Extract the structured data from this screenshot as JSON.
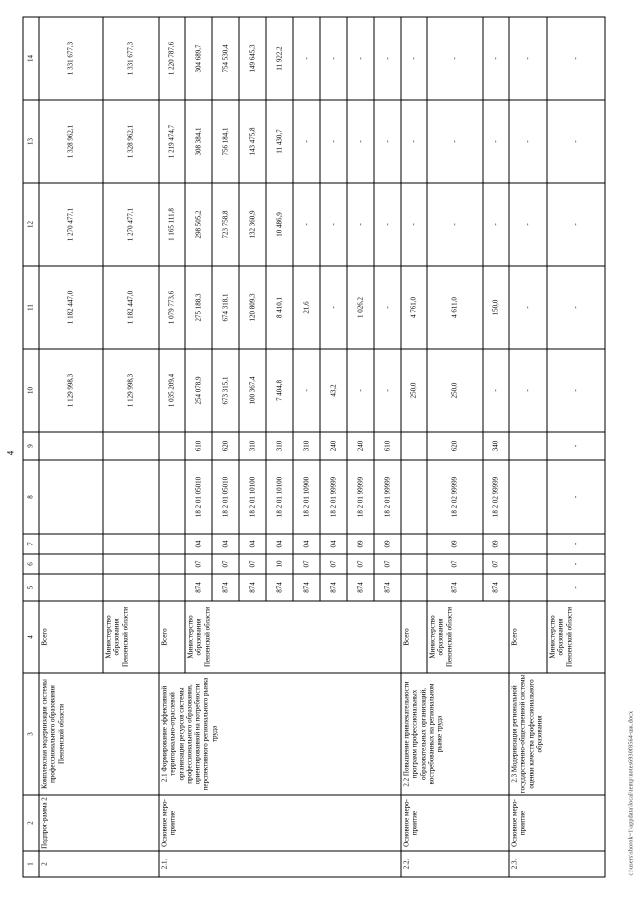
{
  "page": {
    "number": "4",
    "footer_path": "c:\\users\\shorok~1\\appdata\\local\\temp\\notes6930f8564-шк.docx"
  },
  "table": {
    "header": [
      "1",
      "2",
      "3",
      "4",
      "5",
      "6",
      "7",
      "8",
      "9",
      "10",
      "11",
      "12",
      "13",
      "14"
    ],
    "rows": [
      {
        "name": "subprogram-2-total-row",
        "cells": [
          {
            "t": "2",
            "rs": 2,
            "k": "txt"
          },
          {
            "t": "Подпрог-рамма 2",
            "rs": 2,
            "k": "txt"
          },
          {
            "t": "Комплексная модернизация системы профессионального образования Пензенской области",
            "rs": 2,
            "k": "txt"
          },
          {
            "t": "Всего",
            "k": "txt"
          },
          {
            "t": ""
          },
          {
            "t": ""
          },
          {
            "t": ""
          },
          {
            "t": ""
          },
          {
            "t": ""
          },
          {
            "t": "1 129 998,3"
          },
          {
            "t": "1 182 447,0"
          },
          {
            "t": "1 270 477,1"
          },
          {
            "t": "1 328 962,1"
          },
          {
            "t": "1 331 677,3"
          }
        ]
      },
      {
        "name": "subprogram-2-ministry-row",
        "cells": [
          {
            "t": "Министерство образования Пензенской области",
            "k": "txt"
          },
          {
            "t": ""
          },
          {
            "t": ""
          },
          {
            "t": ""
          },
          {
            "t": ""
          },
          {
            "t": ""
          },
          {
            "t": "1 129 998,3"
          },
          {
            "t": "1 182 447,0"
          },
          {
            "t": "1 270 477,1"
          },
          {
            "t": "1 328 962,1"
          },
          {
            "t": "1 331 677,3"
          }
        ]
      },
      {
        "name": "activity-2-1-total-row",
        "cells": [
          {
            "t": "2.1.",
            "rs": 9,
            "k": "txt"
          },
          {
            "t": "Основное меро-приятие",
            "rs": 9,
            "k": "txt"
          },
          {
            "t": "2.1 Формирование эффективной территориально-отраслевой организации ресурсов системы профессионального образования, ориентированной на потребности перспективного регионального рынка труда",
            "rs": 9,
            "k": "txt"
          },
          {
            "t": "Всего",
            "k": "txt"
          },
          {
            "t": ""
          },
          {
            "t": ""
          },
          {
            "t": ""
          },
          {
            "t": ""
          },
          {
            "t": ""
          },
          {
            "t": "1 035 209,4"
          },
          {
            "t": "1 079 773,6"
          },
          {
            "t": "1 165 111,8"
          },
          {
            "t": "1 219 474,7"
          },
          {
            "t": "1 220 787,6"
          }
        ]
      },
      {
        "name": "budget-line-row",
        "cells": [
          {
            "t": "Министерство образования Пензенской области",
            "rs": 8,
            "k": "txt"
          },
          {
            "t": "874"
          },
          {
            "t": "07"
          },
          {
            "t": "04"
          },
          {
            "t": "18 2 01 05010"
          },
          {
            "t": "610"
          },
          {
            "t": "254 078,9"
          },
          {
            "t": "275 188,3"
          },
          {
            "t": "298 505,2"
          },
          {
            "t": "308 384,1"
          },
          {
            "t": "304 689,7"
          }
        ]
      },
      {
        "name": "budget-line-row",
        "cells": [
          {
            "t": "874"
          },
          {
            "t": "07"
          },
          {
            "t": "04"
          },
          {
            "t": "18 2 01 05010"
          },
          {
            "t": "620"
          },
          {
            "t": "673 315,1"
          },
          {
            "t": "674 318,1"
          },
          {
            "t": "723 758,8"
          },
          {
            "t": "756 184,1"
          },
          {
            "t": "754 530,4"
          }
        ]
      },
      {
        "name": "budget-line-row",
        "cells": [
          {
            "t": "874"
          },
          {
            "t": "07"
          },
          {
            "t": "04"
          },
          {
            "t": "18 2 01 10100"
          },
          {
            "t": "310"
          },
          {
            "t": "100 367,4"
          },
          {
            "t": "120 809,3"
          },
          {
            "t": "132 360,9"
          },
          {
            "t": "143 475,8"
          },
          {
            "t": "149 645,3"
          }
        ]
      },
      {
        "name": "budget-line-row",
        "cells": [
          {
            "t": "874"
          },
          {
            "t": "10"
          },
          {
            "t": "04"
          },
          {
            "t": "18 2 01 10100"
          },
          {
            "t": "310"
          },
          {
            "t": "7 404,8"
          },
          {
            "t": "8 410,1"
          },
          {
            "t": "10 486,9"
          },
          {
            "t": "11 430,7"
          },
          {
            "t": "11 922,2"
          }
        ]
      },
      {
        "name": "budget-line-row",
        "cells": [
          {
            "t": "874"
          },
          {
            "t": "07"
          },
          {
            "t": "04"
          },
          {
            "t": "18 2 01 10900"
          },
          {
            "t": "310"
          },
          {
            "t": "-"
          },
          {
            "t": "21,6"
          },
          {
            "t": "-"
          },
          {
            "t": "-"
          },
          {
            "t": "-"
          }
        ]
      },
      {
        "name": "budget-line-row",
        "cells": [
          {
            "t": "874"
          },
          {
            "t": "07"
          },
          {
            "t": "04"
          },
          {
            "t": "18 2 01 99999"
          },
          {
            "t": "240"
          },
          {
            "t": "43,2"
          },
          {
            "t": "-"
          },
          {
            "t": "-"
          },
          {
            "t": "-"
          },
          {
            "t": "-"
          }
        ]
      },
      {
        "name": "budget-line-row",
        "cells": [
          {
            "t": "874"
          },
          {
            "t": "07"
          },
          {
            "t": "09"
          },
          {
            "t": "18 2 01 99999"
          },
          {
            "t": "240"
          },
          {
            "t": "-"
          },
          {
            "t": "1 026,2"
          },
          {
            "t": "-"
          },
          {
            "t": "-"
          },
          {
            "t": "-"
          }
        ]
      },
      {
        "name": "budget-line-row",
        "cells": [
          {
            "t": "874"
          },
          {
            "t": "07"
          },
          {
            "t": "09"
          },
          {
            "t": "18 2 01 99999"
          },
          {
            "t": "610"
          },
          {
            "t": "-"
          },
          {
            "t": "-"
          },
          {
            "t": "-"
          },
          {
            "t": "-"
          },
          {
            "t": "-"
          }
        ]
      },
      {
        "name": "activity-2-2-total-row",
        "cells": [
          {
            "t": "2.2.",
            "rs": 3,
            "k": "txt"
          },
          {
            "t": "Основное меро-приятие",
            "rs": 3,
            "k": "txt"
          },
          {
            "t": "2.2 Повышение привлекательности программ профессиональных образовательных организаций, востребованных на региональном рынке труда",
            "rs": 3,
            "k": "txt"
          },
          {
            "t": "Всего",
            "k": "txt"
          },
          {
            "t": ""
          },
          {
            "t": ""
          },
          {
            "t": ""
          },
          {
            "t": ""
          },
          {
            "t": ""
          },
          {
            "t": "250,0"
          },
          {
            "t": "4 761,0"
          },
          {
            "t": "-"
          },
          {
            "t": "-"
          },
          {
            "t": "-"
          }
        ]
      },
      {
        "name": "budget-line-row",
        "cells": [
          {
            "t": "Министерство образования Пензенской области",
            "rs": 2,
            "k": "txt"
          },
          {
            "t": "874"
          },
          {
            "t": "07"
          },
          {
            "t": "09"
          },
          {
            "t": "18 2 02 99999"
          },
          {
            "t": "620"
          },
          {
            "t": "250,0"
          },
          {
            "t": "4 611,0"
          },
          {
            "t": "-"
          },
          {
            "t": "-"
          },
          {
            "t": "-"
          }
        ]
      },
      {
        "name": "budget-line-row",
        "cells": [
          {
            "t": "874"
          },
          {
            "t": "07"
          },
          {
            "t": "09"
          },
          {
            "t": "18 2 02 99999"
          },
          {
            "t": "340"
          },
          {
            "t": "-"
          },
          {
            "t": "150,0"
          },
          {
            "t": "-"
          },
          {
            "t": "-"
          },
          {
            "t": "-"
          }
        ]
      },
      {
        "name": "activity-2-3-total-row",
        "cells": [
          {
            "t": "2.3.",
            "rs": 2,
            "k": "txt"
          },
          {
            "t": "Основное меро-приятие",
            "rs": 2,
            "k": "txt"
          },
          {
            "t": "2.3 Модернизация региональной государственно-общественной системы оценки качества профессионального образования",
            "rs": 2,
            "k": "txt"
          },
          {
            "t": "Всего",
            "k": "txt"
          },
          {
            "t": ""
          },
          {
            "t": ""
          },
          {
            "t": ""
          },
          {
            "t": ""
          },
          {
            "t": ""
          },
          {
            "t": "-"
          },
          {
            "t": "-"
          },
          {
            "t": "-"
          },
          {
            "t": "-"
          },
          {
            "t": "-"
          }
        ]
      },
      {
        "name": "budget-line-row",
        "cells": [
          {
            "t": "Министерство образования Пензенской области",
            "k": "txt"
          },
          {
            "t": "-"
          },
          {
            "t": "-"
          },
          {
            "t": "-"
          },
          {
            "t": "-"
          },
          {
            "t": "-"
          },
          {
            "t": "-"
          },
          {
            "t": "-"
          },
          {
            "t": "-"
          },
          {
            "t": "-"
          },
          {
            "t": "-"
          }
        ]
      }
    ]
  }
}
